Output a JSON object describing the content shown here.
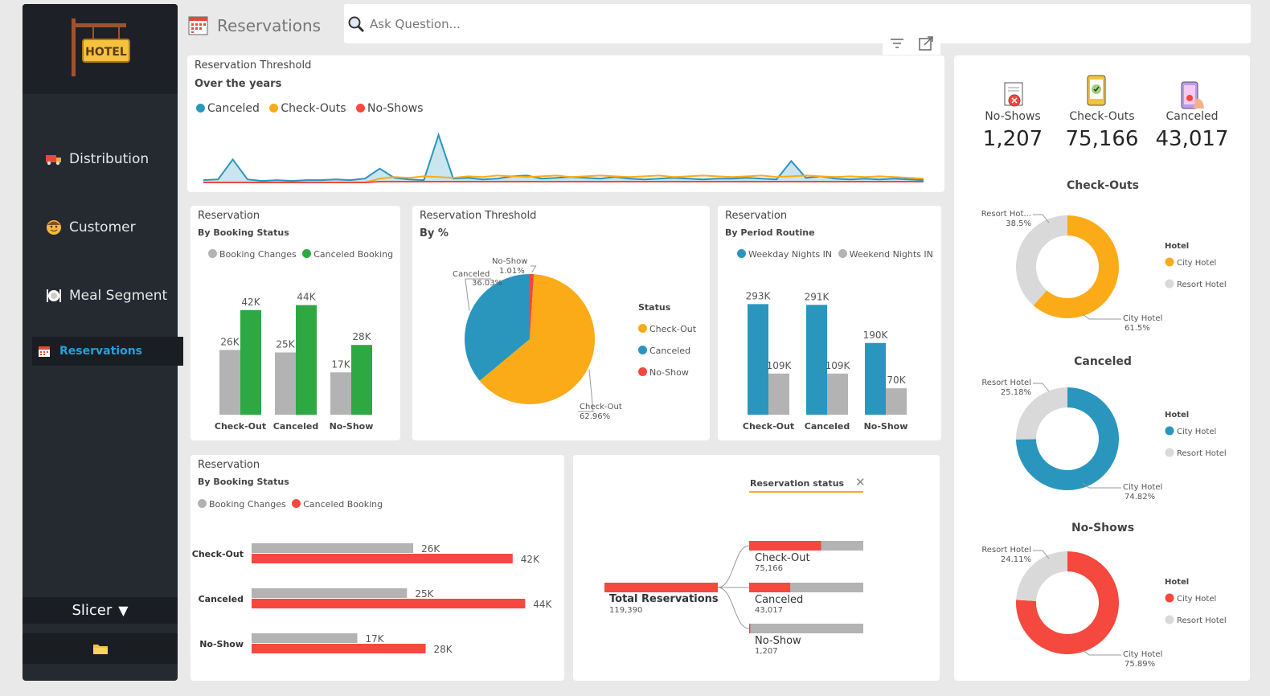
{
  "app": {
    "logo_text": "HOTEL"
  },
  "nav": {
    "items": [
      {
        "label": "Distribution"
      },
      {
        "label": "Customer"
      },
      {
        "label": "Meal Segment"
      },
      {
        "label": "Reservations"
      }
    ],
    "slicer_label": "Slicer"
  },
  "header": {
    "page_title": "Reservations",
    "search_placeholder": "Ask Question..."
  },
  "kpis": [
    {
      "label": "No-Shows",
      "value": "1,207"
    },
    {
      "label": "Check-Outs",
      "value": "75,166"
    },
    {
      "label": "Canceled",
      "value": "43,017"
    }
  ],
  "colors": {
    "teal": "#2a96bd",
    "orange": "#fbab18",
    "red": "#f5483e",
    "green": "#2ea843",
    "gray": "#b3b3b3",
    "lightgray": "#d9d9d9",
    "sidebar": "#252a31",
    "accent": "#2aa0d8"
  },
  "line_card": {
    "title": "Reservation Threshold",
    "subtitle": "Over the years",
    "legend": [
      "Canceled",
      "Check-Outs",
      "No-Shows"
    ]
  },
  "booking_status_card": {
    "title": "Reservation",
    "subtitle": "By Booking Status",
    "legend": [
      "Booking Changes",
      "Canceled Booking"
    ]
  },
  "pie_card": {
    "title": "Reservation Threshold",
    "subtitle": "By %",
    "legend_title": "Status",
    "legend": [
      "Check-Out",
      "Canceled",
      "No-Show"
    ]
  },
  "period_card": {
    "title": "Reservation",
    "subtitle": "By Period Routine",
    "legend": [
      "Weekday Nights IN",
      "Weekend Nights IN"
    ]
  },
  "hbar_card": {
    "title": "Reservation",
    "subtitle": "By Booking Status",
    "legend": [
      "Booking Changes",
      "Canceled Booking"
    ]
  },
  "decomp": {
    "header": "Reservation status",
    "root_label": "Total Reservations",
    "root_value": "119,390",
    "children": [
      {
        "label": "Check-Out",
        "value": "75,166",
        "fraction": 0.63
      },
      {
        "label": "Canceled",
        "value": "43,017",
        "fraction": 0.36
      },
      {
        "label": "No-Show",
        "value": "1,207",
        "fraction": 0.01
      }
    ]
  },
  "chart_data": [
    {
      "type": "line",
      "title": "Reservation Threshold",
      "subtitle": "Over the years",
      "series": [
        {
          "name": "Canceled",
          "color": "#2a96bd",
          "values": [
            3,
            4,
            30,
            4,
            2,
            3,
            2,
            3,
            3,
            4,
            3,
            5,
            18,
            6,
            4,
            3,
            62,
            5,
            6,
            4,
            5,
            8,
            9,
            5,
            6,
            7,
            6,
            5,
            7,
            5,
            4,
            5,
            6,
            5,
            4,
            5,
            5,
            6,
            5,
            4,
            28,
            6,
            8,
            5,
            4,
            5,
            4,
            5,
            4,
            3
          ]
        },
        {
          "name": "Check-Outs",
          "color": "#fbab18",
          "values": [
            0,
            0,
            0,
            0,
            0,
            0,
            0,
            0,
            0,
            0,
            0,
            0,
            5,
            7,
            6,
            8,
            7,
            6,
            8,
            7,
            9,
            8,
            7,
            8,
            9,
            7,
            8,
            9,
            8,
            7,
            8,
            9,
            7,
            8,
            9,
            8,
            7,
            8,
            9,
            7,
            8,
            9,
            8,
            7,
            8,
            7,
            8,
            7,
            6,
            5
          ]
        },
        {
          "name": "No-Shows",
          "color": "#f5483e",
          "values": [
            0,
            0,
            0,
            0,
            0,
            0,
            0,
            0,
            0,
            0,
            0,
            0,
            1,
            1,
            1,
            1,
            1,
            1,
            1,
            1,
            1,
            1,
            1,
            1,
            1,
            1,
            1,
            1,
            1,
            1,
            1,
            1,
            1,
            1,
            1,
            1,
            1,
            1,
            1,
            1,
            1,
            1,
            1,
            1,
            1,
            1,
            1,
            1,
            1,
            1
          ]
        }
      ]
    },
    {
      "type": "bar",
      "title": "Reservation",
      "subtitle": "By Booking Status",
      "categories": [
        "Check-Out",
        "Canceled",
        "No-Show"
      ],
      "series": [
        {
          "name": "Booking Changes",
          "color": "#b3b3b3",
          "values": [
            26,
            25,
            17
          ],
          "labels": [
            "26K",
            "25K",
            "17K"
          ]
        },
        {
          "name": "Canceled Booking",
          "color": "#2ea843",
          "values": [
            42,
            44,
            28
          ],
          "labels": [
            "42K",
            "44K",
            "28K"
          ]
        }
      ],
      "ylim": [
        0,
        50
      ]
    },
    {
      "type": "pie",
      "title": "Reservation Threshold",
      "subtitle": "By %",
      "slices": [
        {
          "name": "Check-Out",
          "value": 62.96,
          "label": "62.96%",
          "color": "#fbab18"
        },
        {
          "name": "Canceled",
          "value": 36.03,
          "label": "36.03%",
          "color": "#2a96bd"
        },
        {
          "name": "No-Show",
          "value": 1.01,
          "label": "1.01%",
          "color": "#f5483e"
        }
      ]
    },
    {
      "type": "bar",
      "title": "Reservation",
      "subtitle": "By Period Routine",
      "categories": [
        "Check-Out",
        "Canceled",
        "No-Show"
      ],
      "series": [
        {
          "name": "Weekday Nights IN",
          "color": "#2a96bd",
          "values": [
            293,
            291,
            190
          ],
          "labels": [
            "293K",
            "291K",
            "190K"
          ]
        },
        {
          "name": "Weekend Nights IN",
          "color": "#b3b3b3",
          "values": [
            109,
            109,
            70
          ],
          "labels": [
            "109K",
            "109K",
            "70K"
          ]
        }
      ],
      "ylim": [
        0,
        330
      ]
    },
    {
      "type": "bar",
      "orientation": "horizontal",
      "title": "Reservation",
      "subtitle": "By Booking Status",
      "categories": [
        "Check-Out",
        "Canceled",
        "No-Show"
      ],
      "series": [
        {
          "name": "Booking Changes",
          "color": "#b3b3b3",
          "values": [
            26,
            25,
            17
          ],
          "labels": [
            "26K",
            "25K",
            "17K"
          ]
        },
        {
          "name": "Canceled Booking",
          "color": "#f5483e",
          "values": [
            42,
            44,
            28
          ],
          "labels": [
            "42K",
            "44K",
            "28K"
          ]
        }
      ],
      "xlim": [
        0,
        45
      ]
    },
    {
      "type": "pie",
      "title": "Check-Outs",
      "legend_title": "Hotel",
      "slices": [
        {
          "name": "City Hotel",
          "value": 61.5,
          "label": "City Hotel 61.5%",
          "color": "#fbab18"
        },
        {
          "name": "Resort Hotel",
          "value": 38.5,
          "label": "Resort Hot... 38.5%",
          "color": "#d9d9d9"
        }
      ]
    },
    {
      "type": "pie",
      "title": "Canceled",
      "legend_title": "Hotel",
      "slices": [
        {
          "name": "City Hotel",
          "value": 74.82,
          "label": "City Hotel 74.82%",
          "color": "#2a96bd"
        },
        {
          "name": "Resort Hotel",
          "value": 25.18,
          "label": "Resort Hotel 25.18%",
          "color": "#d9d9d9"
        }
      ]
    },
    {
      "type": "pie",
      "title": "No-Shows",
      "legend_title": "Hotel",
      "slices": [
        {
          "name": "City Hotel",
          "value": 75.89,
          "label": "City Hotel 75.89%",
          "color": "#f5483e"
        },
        {
          "name": "Resort Hotel",
          "value": 24.11,
          "label": "Resort Hotel 24.11%",
          "color": "#d9d9d9"
        }
      ]
    }
  ]
}
